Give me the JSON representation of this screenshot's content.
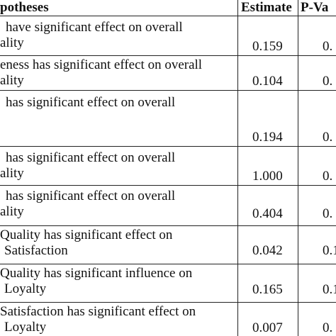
{
  "header": {
    "hypotheses": "potheses",
    "estimate": "Estimate",
    "pvalue": "P-Va"
  },
  "rows": [
    {
      "line1": "have  significant   effect  on  overall",
      "line2": "ality",
      "line3": "",
      "estimate": "0.159",
      "pvalue": "0."
    },
    {
      "line1": "eness has significant  effect on overall",
      "line2": "ality",
      "line3": "",
      "estimate": "0.104",
      "pvalue": "0."
    },
    {
      "line1": "has   significant    effect  on  overall",
      "line2": "",
      "line3": "",
      "estimate": "0.194",
      "pvalue": "0."
    },
    {
      "line1": "has   significant    effect   on   overall",
      "line2": "ality",
      "line3": "",
      "estimate": "1.000",
      "pvalue": "0."
    },
    {
      "line1": "has   significant    effect  on  overall",
      "line2": "ality",
      "line3": "",
      "estimate": "0.404",
      "pvalue": "0."
    },
    {
      "line1": "Quality   has   significant    effect   on",
      "line2": "Satisfaction",
      "line3": "",
      "estimate": "0.042",
      "pvalue": "0.1"
    },
    {
      "line1": "Quality  has  significant  influence  on",
      "line2": "Loyalty",
      "line3": "",
      "estimate": "0.165",
      "pvalue": "0.1"
    },
    {
      "line1": "Satisfaction has significant  effect on",
      "line2": "Loyalty",
      "line3": "",
      "estimate": "0.007",
      "pvalue": "0."
    }
  ]
}
